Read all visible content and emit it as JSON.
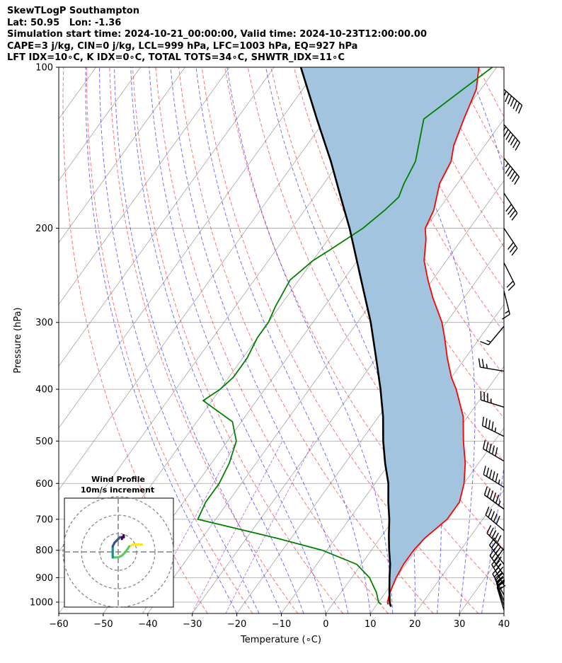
{
  "header": {
    "line1": "SkewTLogP Southampton",
    "line2": "Lat: 50.95   Lon: -1.36",
    "line3": "Simulation start time: 2024-10-21_00:00:00, Valid time: 2024-10-23T12:00:00.00",
    "line4": "CAPE=3 j/kg, CIN=0 j/kg, LCL=999 hPa, LFC=1003 hPa, EQ=927 hPa",
    "line5": "LFT IDX=10∘C, K IDX=0∘C, TOTAL TOTS=34∘C, SHWTR_IDX=11∘C"
  },
  "chart_data": {
    "type": "line",
    "subtype": "skew-t log-p",
    "xlabel": "Temperature (∘C)",
    "ylabel": "Pressure (hPa)",
    "xlim": [
      -60,
      40
    ],
    "ylim": [
      1050,
      100
    ],
    "y_scale": "log",
    "x_ticks": [
      -60,
      -50,
      -40,
      -30,
      -20,
      -10,
      0,
      10,
      20,
      30,
      40
    ],
    "x_tick_labels": [
      "−60",
      "−50",
      "−40",
      "−30",
      "−20",
      "−10",
      "0",
      "10",
      "20",
      "30",
      "40"
    ],
    "y_ticks": [
      1000,
      900,
      800,
      700,
      600,
      500,
      400,
      300,
      200,
      100
    ],
    "y_tick_labels": [
      "1000",
      "900",
      "800",
      "700",
      "600",
      "500",
      "400",
      "300",
      "200",
      "100"
    ],
    "grid": true,
    "series": [
      {
        "role": "temperature",
        "color": "#ff0000",
        "p": [
          1010,
          1000,
          960,
          900,
          850,
          800,
          760,
          700,
          650,
          600,
          550,
          500,
          450,
          400,
          380,
          350,
          320,
          300,
          270,
          250,
          230,
          210,
          200,
          185,
          165,
          150,
          140,
          125,
          110,
          100
        ],
        "t": [
          12.5,
          12,
          11,
          10,
          9.5,
          9.5,
          10,
          12,
          12,
          10,
          7,
          3,
          -1,
          -7,
          -10,
          -14,
          -18,
          -21,
          -27,
          -31,
          -35,
          -38,
          -40,
          -41,
          -44,
          -45,
          -47,
          -49,
          -51,
          -54
        ]
      },
      {
        "role": "dewpoint",
        "color": "#008000",
        "p": [
          1010,
          1000,
          960,
          900,
          850,
          800,
          760,
          700,
          650,
          600,
          550,
          500,
          460,
          420,
          400,
          380,
          350,
          320,
          300,
          280,
          250,
          240,
          230,
          220,
          200,
          185,
          175,
          165,
          150,
          125,
          110,
          100
        ],
        "t": [
          11,
          10,
          8,
          4,
          -1,
          -11,
          -23,
          -44,
          -45,
          -45,
          -46,
          -48,
          -52,
          -62,
          -60,
          -59,
          -59,
          -60,
          -60,
          -61,
          -62,
          -61,
          -60,
          -58,
          -54,
          -52,
          -51,
          -52,
          -53,
          -58,
          -54,
          -51
        ]
      },
      {
        "role": "parcel",
        "color": "#000000",
        "p": [
          1020,
          1000,
          950,
          900,
          850,
          800,
          750,
          700,
          650,
          600,
          550,
          500,
          450,
          400,
          350,
          300,
          250,
          200,
          175,
          150,
          125,
          100
        ],
        "t": [
          13.5,
          12.5,
          10.5,
          8.5,
          6.5,
          4,
          1.5,
          -1,
          -4,
          -7,
          -11,
          -15,
          -19,
          -24,
          -30,
          -37,
          -46,
          -57,
          -64,
          -72,
          -82,
          -94
        ]
      }
    ],
    "wind_barbs": {
      "p": [
        1035,
        1015,
        995,
        970,
        930,
        890,
        850,
        800,
        735,
        670,
        610,
        545,
        490,
        432,
        370,
        305,
        262,
        232,
        200,
        172,
        148,
        128,
        110
      ],
      "u": [
        -3,
        -4,
        -6,
        -8,
        -10,
        -13,
        -15,
        -18,
        -20,
        -22,
        -24,
        -22,
        -20,
        -16,
        -12,
        -5,
        2,
        5,
        8,
        12,
        18,
        22,
        25
      ],
      "v": [
        10,
        12,
        15,
        15,
        17,
        18,
        20,
        18,
        17,
        16,
        15,
        13,
        10,
        5,
        2,
        -6,
        -8,
        -10,
        -12,
        -18,
        -22,
        -25,
        -22
      ]
    },
    "hodograph": {
      "title": "Wind Profile",
      "subtitle": "10m/s increment",
      "rings": [
        10,
        20,
        30
      ],
      "u": [
        13,
        11,
        8,
        6,
        4,
        2,
        0,
        -2,
        -3,
        -3,
        -3,
        -3,
        -3,
        -2,
        -1,
        0,
        1,
        2,
        3,
        3,
        2
      ],
      "v": [
        4,
        4,
        4,
        3,
        0,
        -2,
        -3,
        -3,
        -3,
        -2,
        0,
        1,
        3,
        5,
        6,
        7,
        8,
        8,
        8,
        9,
        7
      ]
    },
    "colors": {
      "cape_fill": "#a2c4df",
      "dry_adiabats": "#ff0000",
      "moist_adiabats": "#0000ff",
      "mixing_ratio": "#9932cc",
      "isotherms": "#808080",
      "hodo_viridis": [
        "#440154",
        "#3b528b",
        "#21918c",
        "#5ec962",
        "#fde725"
      ]
    }
  }
}
